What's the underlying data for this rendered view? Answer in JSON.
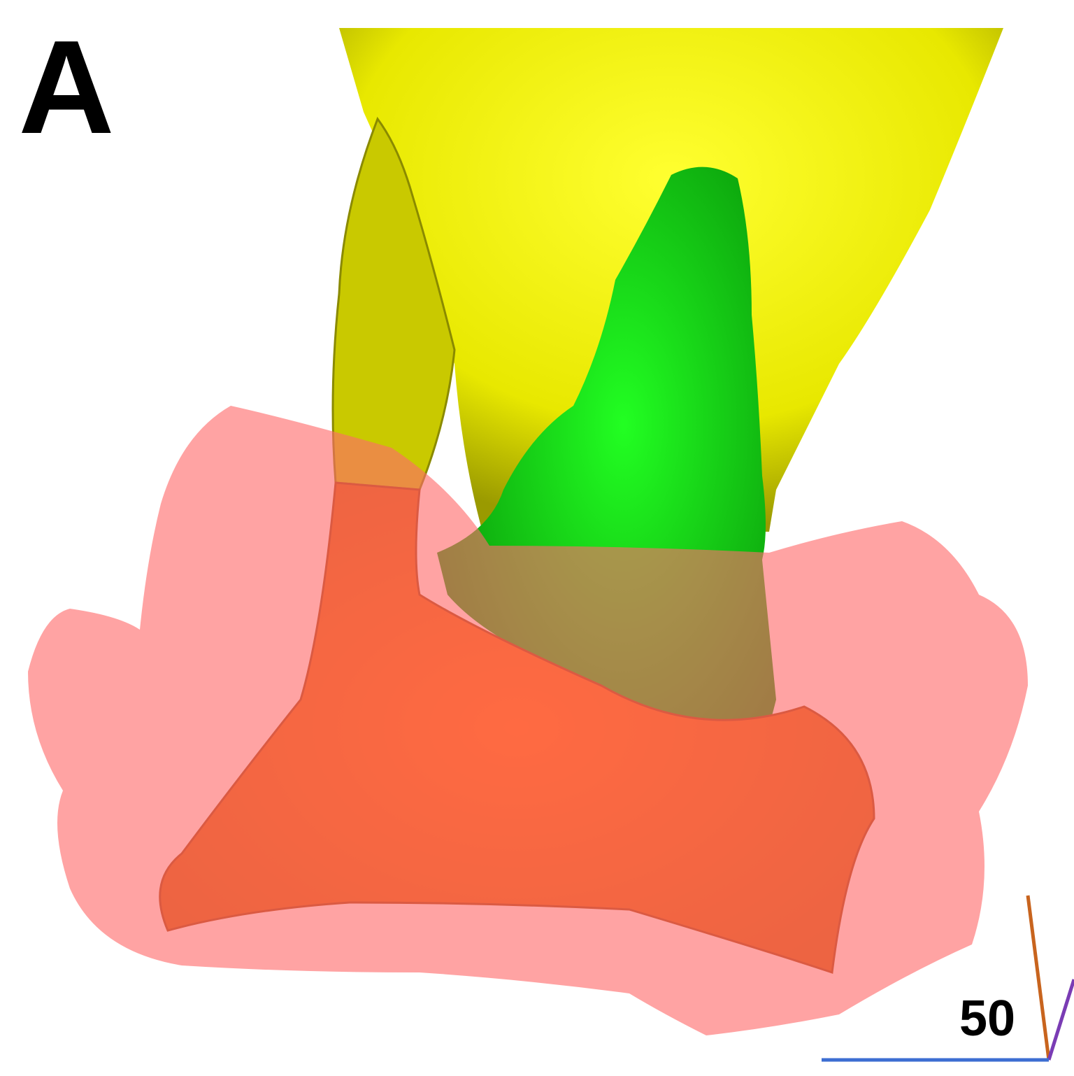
{
  "panel_label": "A",
  "scale_label": "50"
}
